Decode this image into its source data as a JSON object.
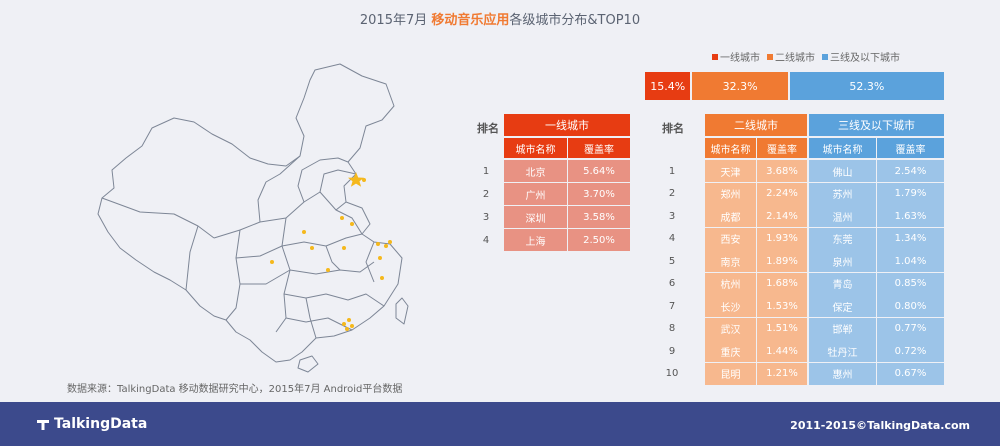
{
  "title": {
    "prefix": "2015年7月 ",
    "highlight": "移动音乐应用",
    "suffix": "各级城市分布&TOP10"
  },
  "source": "数据来源：TalkingData 移动数据研究中心，2015年7月 Android平台数据",
  "legend": [
    {
      "label": "一线城市",
      "color": "#e73c12"
    },
    {
      "label": "二线城市",
      "color": "#f07a32"
    },
    {
      "label": "三线及以下城市",
      "color": "#5ba2dc"
    }
  ],
  "colors": {
    "tier1_dark": "#e73c12",
    "tier1_light": "#e89283",
    "tier2_dark": "#f07a32",
    "tier2_light": "#f7b88e",
    "tier3_dark": "#5ba2dc",
    "tier3_light": "#9cc4e8"
  },
  "headers": {
    "rank": "排名",
    "tier1": "一线城市",
    "tier2": "二线城市",
    "tier3": "三线及以下城市",
    "city_name": "城市名称",
    "coverage": "覆盖率"
  },
  "chart_data": [
    {
      "type": "bar",
      "categories": [
        "一线城市",
        "二线城市",
        "三线及以下城市"
      ],
      "values": [
        15.4,
        32.3,
        52.3
      ],
      "labels": [
        "15.4%",
        "32.3%",
        "52.3%"
      ],
      "stacked": true
    },
    {
      "type": "table",
      "title": "一线城市",
      "columns": [
        "排名",
        "城市名称",
        "覆盖率"
      ],
      "rows": [
        [
          "1",
          "北京",
          "5.64%"
        ],
        [
          "2",
          "广州",
          "3.70%"
        ],
        [
          "3",
          "深圳",
          "3.58%"
        ],
        [
          "4",
          "上海",
          "2.50%"
        ]
      ]
    },
    {
      "type": "table",
      "title": "二线城市",
      "columns": [
        "排名",
        "城市名称",
        "覆盖率"
      ],
      "rows": [
        [
          "1",
          "天津",
          "3.68%"
        ],
        [
          "2",
          "郑州",
          "2.24%"
        ],
        [
          "3",
          "成都",
          "2.14%"
        ],
        [
          "4",
          "西安",
          "1.93%"
        ],
        [
          "5",
          "南京",
          "1.89%"
        ],
        [
          "6",
          "杭州",
          "1.68%"
        ],
        [
          "7",
          "长沙",
          "1.53%"
        ],
        [
          "8",
          "武汉",
          "1.51%"
        ],
        [
          "9",
          "重庆",
          "1.44%"
        ],
        [
          "10",
          "昆明",
          "1.21%"
        ]
      ]
    },
    {
      "type": "table",
      "title": "三线及以下城市",
      "columns": [
        "排名",
        "城市名称",
        "覆盖率"
      ],
      "rows": [
        [
          "1",
          "佛山",
          "2.54%"
        ],
        [
          "2",
          "苏州",
          "1.79%"
        ],
        [
          "3",
          "温州",
          "1.63%"
        ],
        [
          "4",
          "东莞",
          "1.34%"
        ],
        [
          "5",
          "泉州",
          "1.04%"
        ],
        [
          "6",
          "青岛",
          "0.85%"
        ],
        [
          "7",
          "保定",
          "0.80%"
        ],
        [
          "8",
          "邯郸",
          "0.77%"
        ],
        [
          "9",
          "牡丹江",
          "0.72%"
        ],
        [
          "10",
          "惠州",
          "0.67%"
        ]
      ]
    }
  ],
  "footer": {
    "logo": "TalkingData",
    "copyright": "2011-2015©TalkingData.com"
  }
}
